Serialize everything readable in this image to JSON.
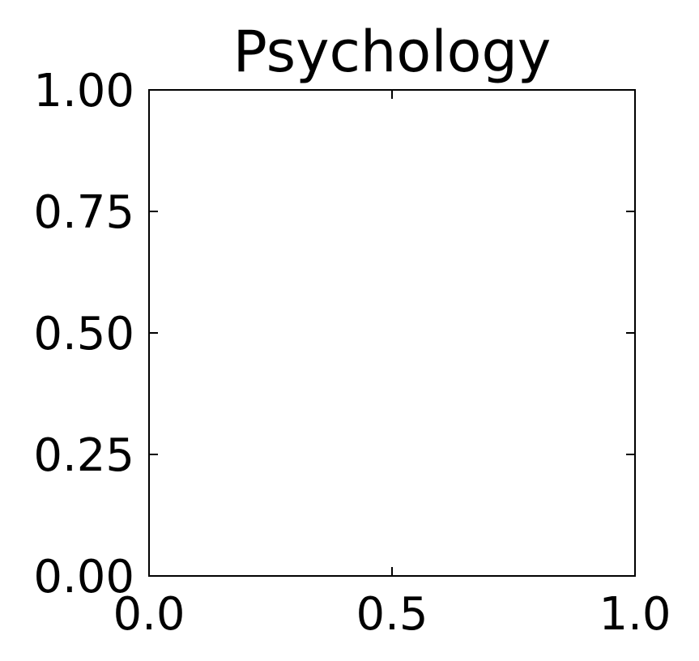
{
  "chart_data": {
    "type": "scatter",
    "title": "Psychology",
    "xlabel": "",
    "ylabel": "",
    "xlim": [
      0.0,
      1.0
    ],
    "ylim": [
      0.0,
      1.0
    ],
    "x_ticks": [
      0.0,
      0.5,
      1.0
    ],
    "x_tick_labels": [
      "0.0",
      "0.5",
      "1.0"
    ],
    "y_ticks": [
      0.0,
      0.25,
      0.5,
      0.75,
      1.0
    ],
    "y_tick_labels": [
      "0.00",
      "0.25",
      "0.50",
      "0.75",
      "1.00"
    ],
    "tick_direction": "in",
    "grid": false,
    "series": [],
    "colors": {
      "axes": "#000000",
      "background": "#ffffff"
    }
  }
}
